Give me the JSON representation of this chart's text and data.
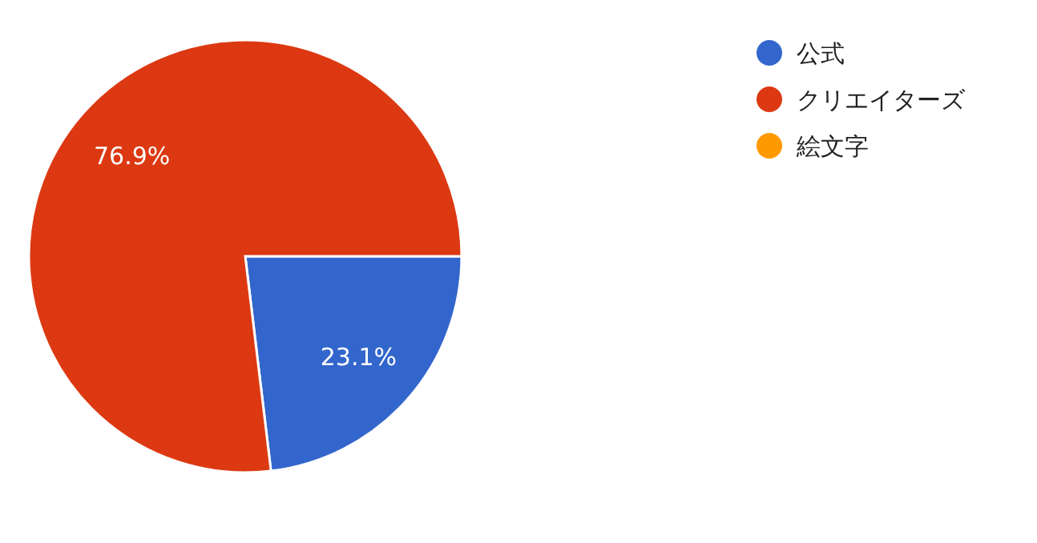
{
  "chart_data": {
    "type": "pie",
    "categories": [
      "公式",
      "クリエイターズ",
      "絵文字"
    ],
    "values": [
      23.1,
      76.9,
      0
    ],
    "colors": [
      "#3366cc",
      "#dc3912",
      "#ff9900"
    ],
    "value_labels": [
      "23.1%",
      "76.9%",
      null
    ],
    "legend": "right"
  }
}
